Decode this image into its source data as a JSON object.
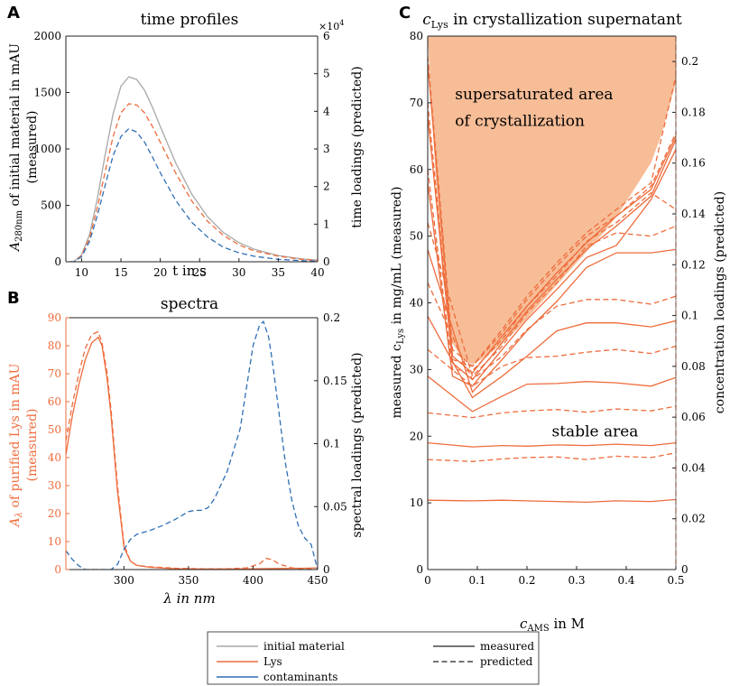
{
  "colors": {
    "initial": "#a9a9a9",
    "lys": "#ee6c3c",
    "contam": "#2f6fb5",
    "area": "#f7bd97",
    "axis": "#222222"
  },
  "chart_data": [
    {
      "id": "A",
      "type": "line",
      "panel_label": "A",
      "title": "time profiles",
      "xlabel": "t in s",
      "ylabel_left": {
        "main": "A",
        "sub": "280nm",
        "rest": " of initial material in mAU",
        "line2": "(measured)"
      },
      "ylabel_right": "time loadings (predicted)",
      "xlim": [
        8,
        40
      ],
      "ylim": [
        0,
        2000
      ],
      "y2lim": [
        0,
        6
      ],
      "y2_multiplier": "×10",
      "y2_multiplier_exp": "4",
      "xticks": [
        10,
        15,
        20,
        25,
        30,
        35,
        40
      ],
      "yticks": [
        0,
        500,
        1000,
        1500,
        2000
      ],
      "y2ticks": [
        0,
        1,
        2,
        3,
        4,
        5,
        6
      ],
      "series": [
        {
          "name": "initial material",
          "color_key": "initial",
          "style": "solid",
          "axis": "left",
          "x": [
            8.5,
            9,
            10,
            11,
            12,
            13,
            14,
            15,
            16,
            17,
            18,
            19,
            20,
            22,
            24,
            26,
            28,
            30,
            32,
            35,
            38,
            40
          ],
          "y": [
            0,
            0,
            60,
            240,
            560,
            950,
            1310,
            1555,
            1640,
            1615,
            1520,
            1370,
            1200,
            870,
            600,
            400,
            260,
            170,
            110,
            55,
            25,
            15
          ]
        },
        {
          "name": "Lys",
          "color_key": "lys",
          "style": "dashed",
          "axis": "left",
          "x": [
            8.5,
            9,
            10,
            11,
            12,
            13,
            14,
            15,
            16,
            17,
            18,
            19,
            20,
            22,
            24,
            26,
            28,
            30,
            32,
            35,
            38,
            40
          ],
          "y": [
            0,
            0,
            55,
            210,
            480,
            800,
            1110,
            1320,
            1400,
            1390,
            1320,
            1200,
            1060,
            780,
            540,
            360,
            235,
            150,
            95,
            50,
            22,
            12
          ]
        },
        {
          "name": "contaminants",
          "color_key": "contam",
          "style": "dashed",
          "axis": "left",
          "x": [
            8.5,
            9,
            10,
            11,
            12,
            13,
            14,
            15,
            16,
            17,
            18,
            19,
            20,
            22,
            24,
            26,
            28,
            30,
            32,
            35,
            38,
            40
          ],
          "y": [
            0,
            0,
            45,
            180,
            410,
            680,
            940,
            1110,
            1180,
            1150,
            1060,
            930,
            790,
            540,
            350,
            220,
            130,
            80,
            48,
            22,
            10,
            5
          ]
        }
      ]
    },
    {
      "id": "B",
      "type": "line",
      "panel_label": "B",
      "title": "spectra",
      "xlabel": "λ in nm",
      "ylabel_left": {
        "main": "A",
        "sub": "λ",
        "rest": " of purified Lys in mAU",
        "line2": "(measured)"
      },
      "ylabel_right": "spectral loadings (predicted)",
      "xlim": [
        255,
        450
      ],
      "ylim": [
        0,
        90
      ],
      "y2lim": [
        0,
        0.2
      ],
      "xticks": [
        300,
        350,
        400,
        450
      ],
      "yticks": [
        0,
        10,
        20,
        30,
        40,
        50,
        60,
        70,
        80,
        90
      ],
      "y2ticks": [
        0,
        0.05,
        0.1,
        0.15,
        0.2
      ],
      "y2ticklabels": [
        "0",
        "0.05",
        "0.1",
        "0.15",
        "0.2"
      ],
      "series": [
        {
          "name": "Lys measured",
          "color_key": "lys",
          "style": "solid",
          "axis": "left",
          "x": [
            255,
            260,
            265,
            270,
            275,
            280,
            283,
            287,
            290,
            295,
            300,
            305,
            310,
            320,
            340,
            360,
            380,
            400,
            420,
            440,
            450
          ],
          "y": [
            41,
            55,
            66,
            75,
            81,
            83,
            80,
            68,
            55,
            28,
            8,
            3,
            1.5,
            0.8,
            0.3,
            0.2,
            0.2,
            0.3,
            0.4,
            0.5,
            0.6
          ]
        },
        {
          "name": "Lys predicted",
          "color_key": "lys",
          "style": "dashed",
          "axis": "left",
          "x": [
            255,
            260,
            265,
            270,
            275,
            280,
            283,
            287,
            290,
            295,
            300,
            305,
            310,
            320,
            340,
            360,
            380,
            395,
            405,
            410,
            415,
            420,
            430,
            440,
            450
          ],
          "y": [
            46,
            59,
            70,
            79,
            84,
            85,
            81,
            70,
            57,
            30,
            9,
            3,
            1.5,
            1,
            0.5,
            0.3,
            0.3,
            0.6,
            2,
            4,
            3.5,
            2,
            0.6,
            0.2,
            0
          ]
        },
        {
          "name": "contaminants predicted",
          "color_key": "contam",
          "style": "dashed",
          "axis": "right",
          "x": [
            255,
            260,
            265,
            270,
            280,
            290,
            295,
            300,
            305,
            310,
            320,
            330,
            340,
            350,
            355,
            360,
            365,
            370,
            380,
            390,
            395,
            400,
            405,
            408,
            412,
            415,
            420,
            425,
            430,
            435,
            440,
            445,
            450
          ],
          "y": [
            0.015,
            0.008,
            0.003,
            0,
            0,
            0,
            0.004,
            0.016,
            0.024,
            0.028,
            0.031,
            0.035,
            0.04,
            0.046,
            0.047,
            0.047,
            0.049,
            0.056,
            0.078,
            0.112,
            0.145,
            0.178,
            0.194,
            0.197,
            0.185,
            0.165,
            0.125,
            0.085,
            0.055,
            0.035,
            0.025,
            0.02,
            0
          ]
        }
      ]
    },
    {
      "id": "C",
      "type": "line",
      "panel_label": "C",
      "title": {
        "main": "c",
        "sub": "Lys",
        "rest": " in crystallization supernatant"
      },
      "xlabel": {
        "main": "c",
        "sub": "AMS",
        "rest": " in M"
      },
      "ylabel_left": {
        "main": "measured c",
        "sub": "Lys",
        "rest": " in mg/mL (measured)"
      },
      "ylabel_right": "concentration loadings (predicted)",
      "xlim": [
        0,
        0.5
      ],
      "ylim": [
        0,
        80
      ],
      "y2lim": [
        0,
        0.21
      ],
      "xticks": [
        0,
        0.1,
        0.2,
        0.3,
        0.4,
        0.5
      ],
      "xticklabels": [
        "0",
        "0.1",
        "0.2",
        "0.3",
        "0.4",
        "0.5"
      ],
      "yticks": [
        0,
        10,
        20,
        30,
        40,
        50,
        60,
        70,
        80
      ],
      "y2ticks": [
        0,
        0.02,
        0.04,
        0.06,
        0.08,
        0.1,
        0.12,
        0.14,
        0.16,
        0.18,
        0.2
      ],
      "y2ticklabels": [
        "0",
        "0.02",
        "0.04",
        "0.06",
        "0.08",
        "0.1",
        "0.12",
        "0.14",
        "0.16",
        "0.18",
        "0.2"
      ],
      "annotations": [
        {
          "text": "supersaturated area",
          "x": 0.055,
          "y": 70.5
        },
        {
          "text": "of crystallization",
          "x": 0.055,
          "y": 66.5
        },
        {
          "text": "stable area",
          "x": 0.25,
          "y": 20
        }
      ],
      "region": {
        "name": "supersaturated area of crystallization",
        "x": [
          0,
          0.5,
          0.5,
          0.47,
          0.45,
          0.42,
          0.39,
          0.36,
          0.33,
          0.3,
          0.27,
          0.24,
          0.21,
          0.18,
          0.15,
          0.12,
          0.09,
          0.07,
          0.05,
          0.03,
          0.015,
          0
        ],
        "y": [
          80,
          80,
          73,
          65,
          61,
          57.5,
          54,
          51,
          48.5,
          46,
          43.5,
          41,
          38.5,
          36,
          34,
          32,
          30.8,
          31.5,
          34,
          44,
          60,
          80
        ]
      },
      "series": [
        {
          "name": "measured 1",
          "color_key": "lys",
          "style": "solid",
          "x": [
            0,
            0.09,
            0.15,
            0.2,
            0.26,
            0.32,
            0.38,
            0.45,
            0.5
          ],
          "y": [
            10.4,
            10.3,
            10.4,
            10.3,
            10.2,
            10.1,
            10.3,
            10.2,
            10.5
          ]
        },
        {
          "name": "measured 2",
          "color_key": "lys",
          "style": "solid",
          "x": [
            0,
            0.09,
            0.15,
            0.2,
            0.26,
            0.32,
            0.38,
            0.45,
            0.5
          ],
          "y": [
            19,
            18.4,
            18.6,
            18.5,
            18.7,
            18.6,
            18.8,
            18.6,
            19
          ]
        },
        {
          "name": "measured 3",
          "color_key": "lys",
          "style": "solid",
          "x": [
            0,
            0.09,
            0.15,
            0.2,
            0.26,
            0.32,
            0.38,
            0.45,
            0.5
          ],
          "y": [
            29,
            23.7,
            26,
            27.8,
            27.9,
            28.2,
            28,
            27.5,
            28.8
          ]
        },
        {
          "name": "measured 4",
          "color_key": "lys",
          "style": "solid",
          "x": [
            0,
            0.09,
            0.15,
            0.2,
            0.26,
            0.32,
            0.38,
            0.45,
            0.5
          ],
          "y": [
            38,
            25.8,
            29,
            32,
            35.8,
            37,
            37,
            36.4,
            37.3
          ]
        },
        {
          "name": "measured 5",
          "color_key": "lys",
          "style": "solid",
          "x": [
            0,
            0.09,
            0.15,
            0.2,
            0.26,
            0.32,
            0.38,
            0.45,
            0.5
          ],
          "y": [
            48,
            26.6,
            31.5,
            35.8,
            40.2,
            45.3,
            47.5,
            47.5,
            48
          ]
        },
        {
          "name": "measured 6",
          "color_key": "lys",
          "style": "solid",
          "x": [
            0,
            0.05,
            0.09,
            0.15,
            0.2,
            0.26,
            0.32,
            0.38,
            0.45,
            0.5
          ],
          "y": [
            58,
            29,
            27.5,
            33,
            37.5,
            42,
            46.8,
            48.6,
            55.5,
            63
          ]
        },
        {
          "name": "measured 7",
          "color_key": "lys",
          "style": "solid",
          "x": [
            0,
            0.05,
            0.09,
            0.15,
            0.2,
            0.26,
            0.32,
            0.38,
            0.45,
            0.5
          ],
          "y": [
            68,
            31,
            28.5,
            34,
            38.8,
            43.5,
            48,
            51.5,
            56,
            64.5
          ]
        },
        {
          "name": "measured 8",
          "color_key": "lys",
          "style": "solid",
          "x": [
            0,
            0.05,
            0.09,
            0.15,
            0.2,
            0.26,
            0.32,
            0.38,
            0.45,
            0.5
          ],
          "y": [
            76,
            32,
            29.5,
            35,
            39.5,
            44.5,
            49,
            53,
            57,
            65
          ]
        },
        {
          "name": "predicted 1",
          "color_key": "lys",
          "style": "dashed",
          "x": [
            0,
            0.09,
            0.15,
            0.2,
            0.26,
            0.32,
            0.38,
            0.45,
            0.5
          ],
          "y": [
            16.5,
            16.2,
            16.6,
            16.8,
            16.9,
            16.5,
            17,
            16.8,
            17.5
          ]
        },
        {
          "name": "predicted 2",
          "color_key": "lys",
          "style": "dashed",
          "x": [
            0,
            0.09,
            0.15,
            0.2,
            0.26,
            0.32,
            0.38,
            0.45,
            0.5
          ],
          "y": [
            23.5,
            22.8,
            23.5,
            23.8,
            24,
            23.6,
            24.1,
            23.8,
            24.5
          ]
        },
        {
          "name": "predicted 3",
          "color_key": "lys",
          "style": "dashed",
          "x": [
            0,
            0.09,
            0.15,
            0.2,
            0.26,
            0.32,
            0.38,
            0.45,
            0.5
          ],
          "y": [
            33,
            27.5,
            30.5,
            31.8,
            32,
            32.6,
            33,
            32.4,
            33.5
          ]
        },
        {
          "name": "predicted 4",
          "color_key": "lys",
          "style": "dashed",
          "x": [
            0,
            0.09,
            0.15,
            0.2,
            0.26,
            0.32,
            0.38,
            0.45,
            0.5
          ],
          "y": [
            43,
            28.5,
            32,
            36,
            39.5,
            40.5,
            40.5,
            39.8,
            41
          ]
        },
        {
          "name": "predicted 5",
          "color_key": "lys",
          "style": "dashed",
          "x": [
            0,
            0.09,
            0.15,
            0.2,
            0.26,
            0.32,
            0.38,
            0.45,
            0.5
          ],
          "y": [
            52,
            29,
            33.5,
            38.5,
            43,
            48.5,
            50.5,
            50,
            51.5
          ]
        },
        {
          "name": "predicted 6",
          "color_key": "lys",
          "style": "dashed",
          "x": [
            0,
            0.05,
            0.09,
            0.15,
            0.2,
            0.26,
            0.32,
            0.38,
            0.45,
            0.5
          ],
          "y": [
            60,
            30,
            29.8,
            34.5,
            39.5,
            44,
            49.2,
            52,
            56.5,
            54
          ]
        },
        {
          "name": "predicted 7",
          "color_key": "lys",
          "style": "dashed",
          "x": [
            0,
            0.05,
            0.09,
            0.15,
            0.2,
            0.26,
            0.32,
            0.38,
            0.45,
            0.5
          ],
          "y": [
            70,
            31.5,
            30.5,
            35.5,
            40.5,
            45.5,
            50,
            53,
            57.5,
            65.5
          ]
        },
        {
          "name": "predicted 8",
          "color_key": "lys",
          "style": "dashed",
          "x": [
            0,
            0.05,
            0.09,
            0.15,
            0.2,
            0.26,
            0.32,
            0.38,
            0.45,
            0.5
          ],
          "y": [
            77,
            33,
            30.5,
            36,
            41,
            46,
            50.5,
            54,
            58,
            74
          ]
        }
      ]
    }
  ],
  "legend": {
    "col1": [
      {
        "label": "initial material",
        "color_key": "initial"
      },
      {
        "label": "Lys",
        "color_key": "lys"
      },
      {
        "label": "contaminants",
        "color_key": "contam"
      }
    ],
    "col2": [
      {
        "label": "measured",
        "style": "solid"
      },
      {
        "label": "predicted",
        "style": "dashed"
      }
    ]
  }
}
